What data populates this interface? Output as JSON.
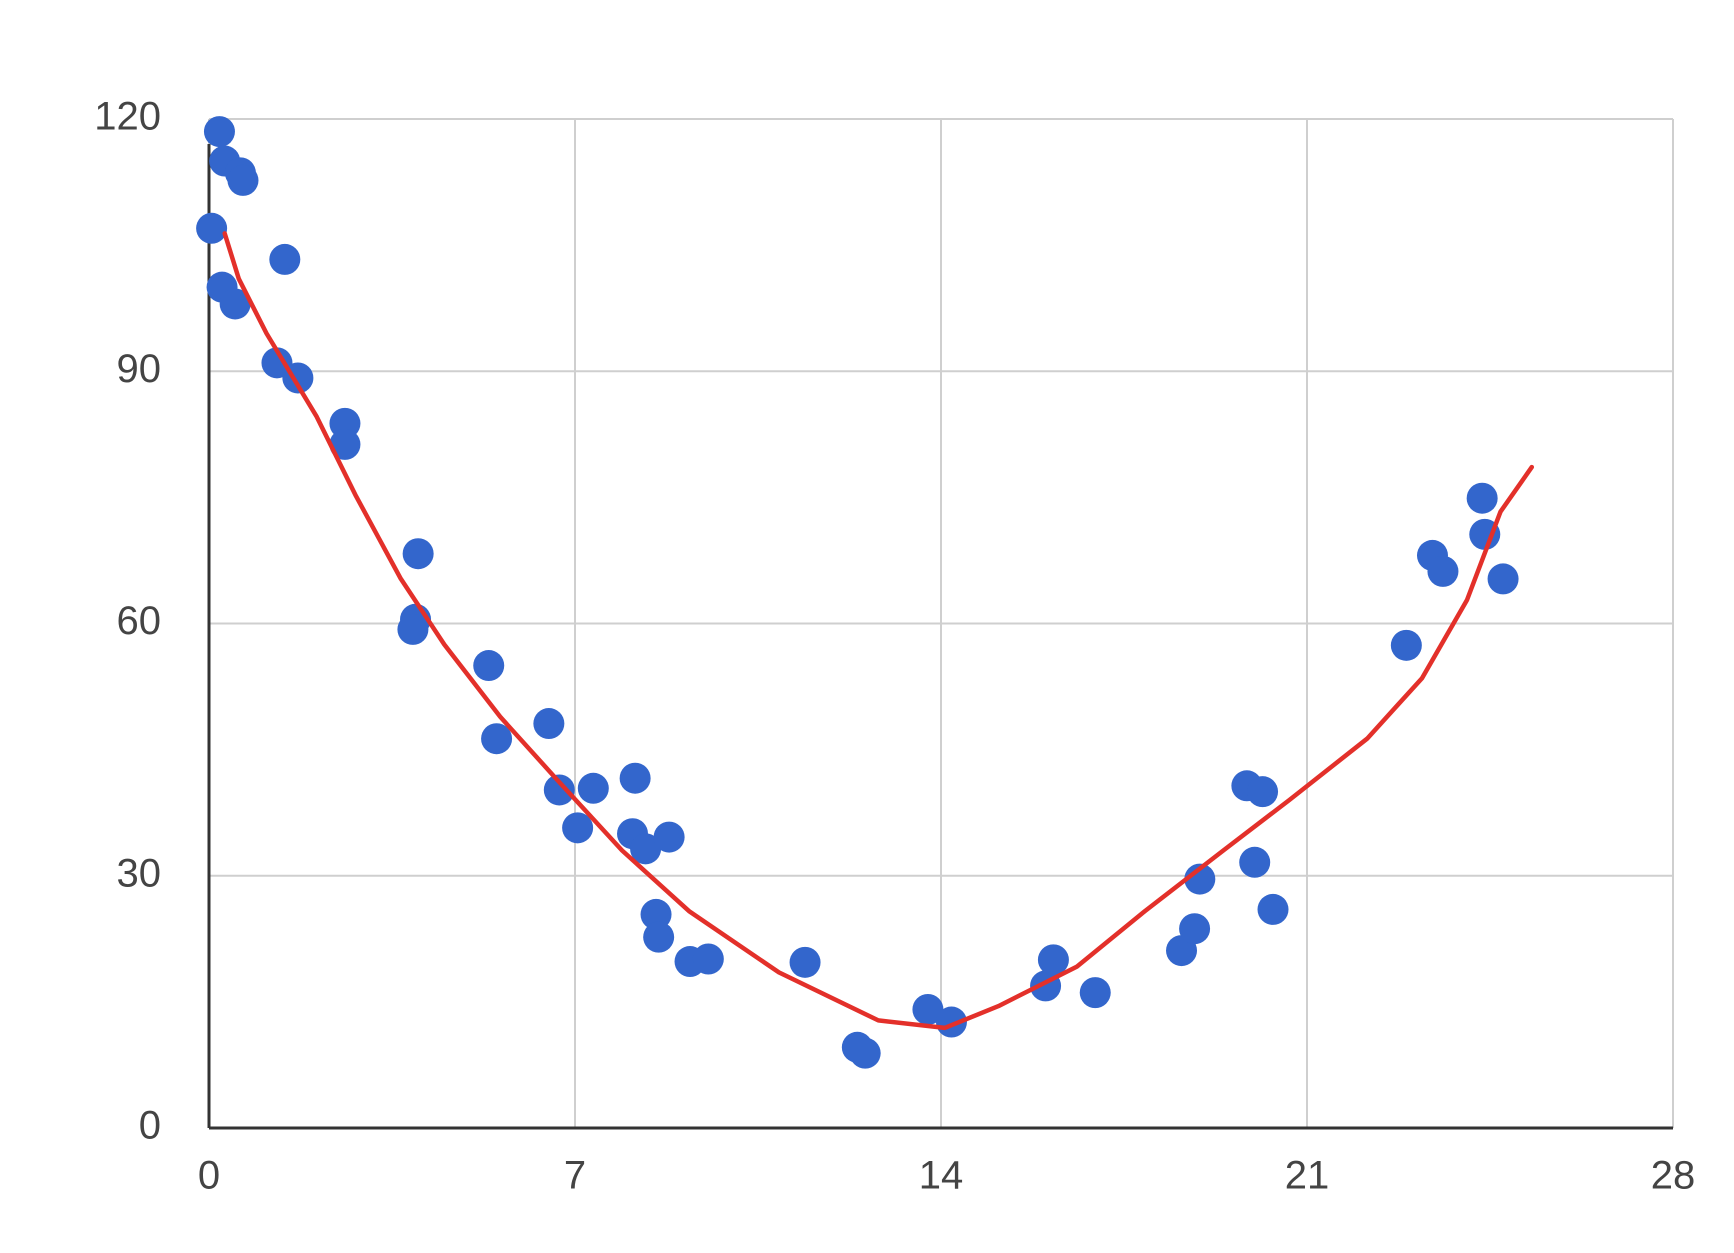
{
  "chart_data": {
    "type": "scatter",
    "series": [
      {
        "color": "#3366cc",
        "x": [
          0.2,
          0.05,
          0.3,
          0.6,
          0.65,
          0.25,
          0.5,
          1.45,
          1.3,
          1.7,
          2.6,
          2.6,
          4.0,
          3.95,
          3.9,
          5.35,
          5.5,
          6.5,
          6.7,
          7.35,
          7.05,
          8.15,
          8.1,
          8.35,
          8.8,
          8.55,
          8.6,
          9.2,
          9.55,
          11.4,
          12.4,
          12.55,
          13.75,
          14.2,
          16.0,
          16.15,
          16.95,
          18.6,
          18.85,
          18.95,
          19.85,
          20.15,
          20.0,
          20.35,
          22.9,
          23.4,
          23.6,
          24.35,
          24.4,
          24.75
        ],
        "values": [
          118.5,
          107,
          115,
          113.6,
          112.7,
          100,
          98,
          103.3,
          91,
          89.2,
          83.8,
          81.3,
          68.3,
          60.5,
          59.3,
          55,
          46.3,
          48.1,
          40.2,
          40.4,
          35.7,
          41.6,
          35,
          33.2,
          34.6,
          25.4,
          22.7,
          19.8,
          20.1,
          19.7,
          9.6,
          8.9,
          14.1,
          12.6,
          16.9,
          20,
          16.1,
          21.1,
          23.7,
          29.6,
          40.7,
          40,
          31.6,
          26,
          57.4,
          68.1,
          66.2,
          74.9,
          70.6,
          65.3
        ]
      }
    ],
    "curve": {
      "color": "#e3302a",
      "x": [
        0.3,
        0.57,
        1.1,
        2.06,
        2.8,
        3.66,
        4.5,
        5.57,
        6.63,
        7.9,
        9.18,
        10.9,
        12.8,
        14.07,
        15.1,
        16.6,
        17.9,
        19.4,
        20.66,
        22.15,
        23.2,
        24.06,
        24.7,
        25.3
      ],
      "values": [
        106.4,
        101,
        94.5,
        84.6,
        75.3,
        65.4,
        57.5,
        48.9,
        41.6,
        33,
        25.8,
        18.5,
        12.8,
        11.9,
        14.5,
        19.2,
        25.8,
        33,
        39,
        46.3,
        53.5,
        62.8,
        73.3,
        78.6
      ]
    },
    "xlim": [
      0,
      28
    ],
    "xticks": [
      0,
      7,
      14,
      21,
      28
    ],
    "ylim": [
      0,
      120
    ],
    "yticks": [
      0,
      30,
      60,
      90,
      120
    ],
    "grid": true
  }
}
